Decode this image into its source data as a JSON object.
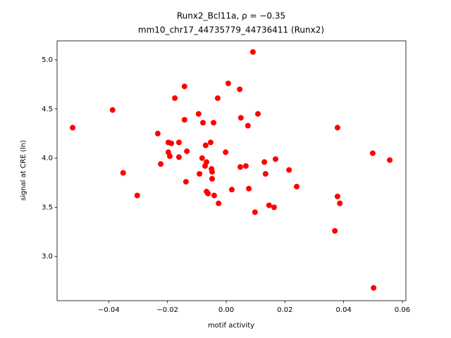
{
  "chart_data": {
    "type": "scatter",
    "title": "Runx2_Bcl11a, ρ = −0.35",
    "subtitle": "mm10_chr17_44735779_44736411 (Runx2)",
    "x_label": "motif activity",
    "y_label": "signal at CRE (ln)",
    "color": "#ff0000",
    "x": [
      -0.0523,
      -0.0387,
      -0.0351,
      -0.0303,
      -0.0233,
      -0.0223,
      -0.0197,
      -0.0197,
      -0.0192,
      -0.0187,
      -0.0175,
      -0.0161,
      -0.0161,
      -0.0142,
      -0.0142,
      -0.0137,
      -0.0134,
      -0.0094,
      -0.0091,
      -0.0082,
      -0.0079,
      -0.0072,
      -0.007,
      -0.0067,
      -0.0067,
      -0.0062,
      -0.0053,
      -0.005,
      -0.0048,
      -0.0048,
      -0.0043,
      -0.0041,
      -0.0029,
      -0.0026,
      -0.0002,
      0.0007,
      0.0019,
      0.0046,
      0.0048,
      0.005,
      0.0067,
      0.0074,
      0.0077,
      0.0091,
      0.0098,
      0.0108,
      0.013,
      0.0134,
      0.0146,
      0.0163,
      0.0168,
      0.0214,
      0.024,
      0.037,
      0.0379,
      0.0379,
      0.0387,
      0.0499,
      0.0502,
      0.0557
    ],
    "values": [
      4.31,
      4.49,
      3.85,
      3.62,
      4.25,
      3.94,
      4.16,
      4.06,
      4.02,
      4.15,
      4.61,
      4.16,
      4.01,
      4.73,
      4.39,
      3.76,
      4.07,
      4.45,
      3.84,
      4.0,
      4.36,
      3.92,
      4.13,
      3.96,
      3.66,
      3.64,
      4.16,
      3.89,
      3.86,
      3.79,
      4.36,
      3.62,
      4.61,
      3.54,
      4.06,
      4.76,
      3.68,
      4.7,
      3.91,
      4.41,
      3.92,
      4.33,
      3.69,
      5.08,
      3.45,
      4.45,
      3.96,
      3.84,
      3.52,
      3.5,
      3.99,
      3.88,
      3.71,
      3.26,
      4.31,
      3.61,
      3.54,
      4.05,
      2.68,
      3.98
    ],
    "xlim": [
      -0.0576,
      0.0612
    ],
    "ylim": [
      2.55,
      5.193
    ],
    "xticks": [
      {
        "value": -0.04,
        "label": "−0.04"
      },
      {
        "value": -0.02,
        "label": "−0.02"
      },
      {
        "value": 0,
        "label": "0.00"
      },
      {
        "value": 0.02,
        "label": "0.02"
      },
      {
        "value": 0.04,
        "label": "0.04"
      },
      {
        "value": 0.06,
        "label": "0.06"
      }
    ],
    "yticks": [
      {
        "value": 3,
        "label": "3.0"
      },
      {
        "value": 3.5,
        "label": "3.5"
      },
      {
        "value": 4,
        "label": "4.0"
      },
      {
        "value": 4.5,
        "label": "4.5"
      },
      {
        "value": 5,
        "label": "5.0"
      }
    ],
    "grid": false
  }
}
